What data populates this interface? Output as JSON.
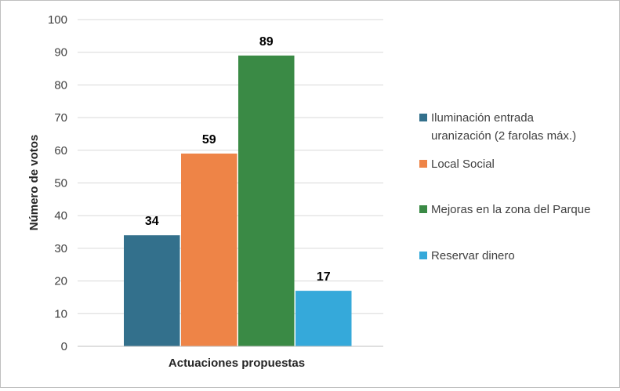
{
  "chart_data": {
    "type": "bar",
    "title": "",
    "xlabel": "Actuaciones propuestas",
    "ylabel": "Número de votos",
    "ylim": [
      0,
      100
    ],
    "yticks": [
      0,
      10,
      20,
      30,
      40,
      50,
      60,
      70,
      80,
      90,
      100
    ],
    "grid": true,
    "legend_position": "right",
    "categories": [
      "Actuaciones propuestas"
    ],
    "series": [
      {
        "name": "Iluminación entrada uranización (2 farolas máx.)",
        "legend_lines": [
          "Iluminación entrada",
          "uranización (2 farolas máx.)"
        ],
        "values": [
          34
        ],
        "color": "#33708c"
      },
      {
        "name": "Local Social",
        "legend_lines": [
          "Local Social"
        ],
        "values": [
          59
        ],
        "color": "#ee8447"
      },
      {
        "name": "Mejoras en la zona del Parque",
        "legend_lines": [
          "Mejoras en la zona del Parque"
        ],
        "values": [
          89
        ],
        "color": "#3a8a45"
      },
      {
        "name": "Reservar dinero",
        "legend_lines": [
          "Reservar dinero"
        ],
        "values": [
          17
        ],
        "color": "#35a9da"
      }
    ]
  }
}
